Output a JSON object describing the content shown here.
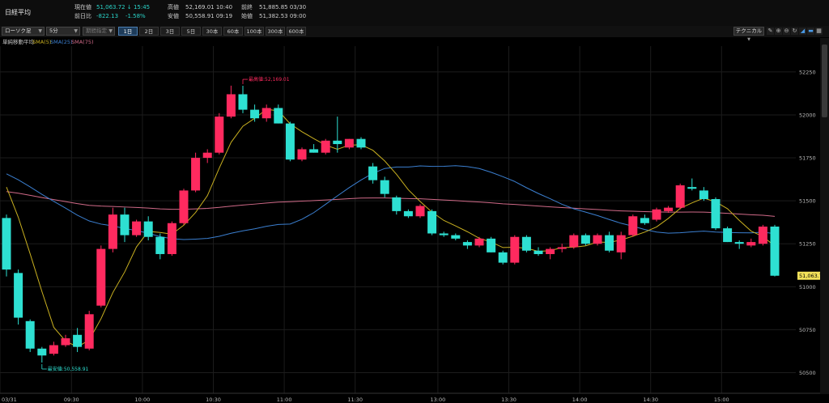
{
  "header": {
    "symbol": "日経平均",
    "quotes": {
      "current_label": "現在値",
      "current_value": "51,063.72 ↓ 15:45",
      "change_label": "前日比",
      "change_value": "-822.13",
      "change_pct": "-1.58%",
      "high_label": "高値",
      "high_value": "52,169.01 10:40",
      "low_label": "安値",
      "low_value": "50,558.91 09:19",
      "prev_label": "前終",
      "prev_value": "51,885.85 03/30",
      "open_label": "始値",
      "open_value": "51,382.53 09:00"
    }
  },
  "toolbar": {
    "chart_type": "ローソク足",
    "interval": "5分",
    "period_placeholder": "期間指定",
    "timeframes": [
      "1日",
      "2日",
      "3日",
      "5日",
      "30本",
      "60本",
      "100本",
      "300本",
      "600本"
    ],
    "active_timeframe": "1日",
    "technical_label": "テクニカル",
    "tool_icons": [
      "pencil-icon",
      "zoom-in-icon",
      "zoom-out-icon",
      "refresh-icon",
      "line-chart-icon",
      "bar-style-icon"
    ]
  },
  "indicators": {
    "main": "単純移動平均",
    "sma5": "SMA(5)",
    "sma25": "SMA(25)",
    "sma75": "SMA(75)",
    "colors": {
      "sma5": "#c9b020",
      "sma25": "#3b7fd0",
      "sma75": "#d06a88",
      "up": "#ff2a5f",
      "down": "#2ee0d2"
    }
  },
  "chart_data": {
    "type": "candlestick",
    "y_ticks": [
      50500,
      50750,
      51000,
      51250,
      51500,
      51750,
      52000,
      52250
    ],
    "y_tick_labels": [
      "50500",
      "50750",
      "51000",
      "51250",
      "51500",
      "51750",
      "52000",
      "52250"
    ],
    "ylim": [
      50380,
      52400
    ],
    "x_tick_labels": [
      "03/31",
      "09:30",
      "10:00",
      "10:30",
      "11:00",
      "11:30",
      "13:00",
      "13:30",
      "14:00",
      "14:30",
      "15:00"
    ],
    "x_tick_index": [
      0,
      6,
      12,
      18,
      24,
      30,
      37,
      43,
      49,
      55,
      61
    ],
    "last_price_label": "51,063.72",
    "high_annotation": "最高値:52,169.01",
    "high_annotation_index": 20,
    "high_value": 52169.01,
    "low_annotation": "最安値:50,558.91",
    "low_annotation_index": 3,
    "low_value": 50558.91,
    "candles": [
      {
        "o": 51400,
        "h": 51420,
        "l": 51060,
        "c": 51100
      },
      {
        "o": 51080,
        "h": 51100,
        "l": 50780,
        "c": 50820
      },
      {
        "o": 50800,
        "h": 50810,
        "l": 50620,
        "c": 50640
      },
      {
        "o": 50640,
        "h": 50650,
        "l": 50559,
        "c": 50600
      },
      {
        "o": 50610,
        "h": 50680,
        "l": 50600,
        "c": 50660
      },
      {
        "o": 50660,
        "h": 50720,
        "l": 50650,
        "c": 50700
      },
      {
        "o": 50720,
        "h": 50760,
        "l": 50620,
        "c": 50650
      },
      {
        "o": 50640,
        "h": 50860,
        "l": 50630,
        "c": 50840
      },
      {
        "o": 50890,
        "h": 51240,
        "l": 50880,
        "c": 51220
      },
      {
        "o": 51220,
        "h": 51460,
        "l": 51200,
        "c": 51420
      },
      {
        "o": 51420,
        "h": 51460,
        "l": 51260,
        "c": 51300
      },
      {
        "o": 51300,
        "h": 51390,
        "l": 51290,
        "c": 51380
      },
      {
        "o": 51380,
        "h": 51410,
        "l": 51270,
        "c": 51290
      },
      {
        "o": 51290,
        "h": 51310,
        "l": 51160,
        "c": 51190
      },
      {
        "o": 51190,
        "h": 51380,
        "l": 51180,
        "c": 51370
      },
      {
        "o": 51370,
        "h": 51570,
        "l": 51360,
        "c": 51560
      },
      {
        "o": 51560,
        "h": 51780,
        "l": 51550,
        "c": 51750
      },
      {
        "o": 51750,
        "h": 51800,
        "l": 51720,
        "c": 51780
      },
      {
        "o": 51780,
        "h": 52010,
        "l": 51770,
        "c": 51990
      },
      {
        "o": 51990,
        "h": 52170,
        "l": 51980,
        "c": 52120
      },
      {
        "o": 52120,
        "h": 52169,
        "l": 52010,
        "c": 52030
      },
      {
        "o": 52030,
        "h": 52060,
        "l": 51960,
        "c": 51980
      },
      {
        "o": 51980,
        "h": 52060,
        "l": 51960,
        "c": 52040
      },
      {
        "o": 52040,
        "h": 52060,
        "l": 51950,
        "c": 51950
      },
      {
        "o": 51950,
        "h": 51960,
        "l": 51730,
        "c": 51740
      },
      {
        "o": 51740,
        "h": 51810,
        "l": 51730,
        "c": 51800
      },
      {
        "o": 51800,
        "h": 51830,
        "l": 51780,
        "c": 51780
      },
      {
        "o": 51780,
        "h": 51860,
        "l": 51770,
        "c": 51850
      },
      {
        "o": 51850,
        "h": 51990,
        "l": 51780,
        "c": 51830
      },
      {
        "o": 51810,
        "h": 51860,
        "l": 51800,
        "c": 51860
      },
      {
        "o": 51860,
        "h": 51870,
        "l": 51800,
        "c": 51810
      },
      {
        "o": 51700,
        "h": 51720,
        "l": 51600,
        "c": 51620
      },
      {
        "o": 51620,
        "h": 51640,
        "l": 51520,
        "c": 51540
      },
      {
        "o": 51520,
        "h": 51530,
        "l": 51420,
        "c": 51440
      },
      {
        "o": 51440,
        "h": 51450,
        "l": 51400,
        "c": 51410
      },
      {
        "o": 51410,
        "h": 51480,
        "l": 51400,
        "c": 51470
      },
      {
        "o": 51440,
        "h": 51450,
        "l": 51300,
        "c": 51310
      },
      {
        "o": 51310,
        "h": 51320,
        "l": 51290,
        "c": 51300
      },
      {
        "o": 51300,
        "h": 51310,
        "l": 51270,
        "c": 51280
      },
      {
        "o": 51260,
        "h": 51270,
        "l": 51220,
        "c": 51240
      },
      {
        "o": 51240,
        "h": 51290,
        "l": 51230,
        "c": 51280
      },
      {
        "o": 51280,
        "h": 51290,
        "l": 51200,
        "c": 51200
      },
      {
        "o": 51200,
        "h": 51210,
        "l": 51130,
        "c": 51140
      },
      {
        "o": 51140,
        "h": 51300,
        "l": 51130,
        "c": 51290
      },
      {
        "o": 51290,
        "h": 51300,
        "l": 51200,
        "c": 51210
      },
      {
        "o": 51210,
        "h": 51230,
        "l": 51180,
        "c": 51190
      },
      {
        "o": 51190,
        "h": 51230,
        "l": 51160,
        "c": 51220
      },
      {
        "o": 51220,
        "h": 51250,
        "l": 51200,
        "c": 51230
      },
      {
        "o": 51230,
        "h": 51310,
        "l": 51220,
        "c": 51300
      },
      {
        "o": 51300,
        "h": 51310,
        "l": 51240,
        "c": 51250
      },
      {
        "o": 51250,
        "h": 51310,
        "l": 51240,
        "c": 51300
      },
      {
        "o": 51300,
        "h": 51320,
        "l": 51200,
        "c": 51210
      },
      {
        "o": 51200,
        "h": 51320,
        "l": 51160,
        "c": 51300
      },
      {
        "o": 51300,
        "h": 51420,
        "l": 51290,
        "c": 51410
      },
      {
        "o": 51400,
        "h": 51420,
        "l": 51360,
        "c": 51370
      },
      {
        "o": 51390,
        "h": 51460,
        "l": 51380,
        "c": 51450
      },
      {
        "o": 51440,
        "h": 51470,
        "l": 51430,
        "c": 51460
      },
      {
        "o": 51460,
        "h": 51600,
        "l": 51450,
        "c": 51590
      },
      {
        "o": 51580,
        "h": 51630,
        "l": 51560,
        "c": 51570
      },
      {
        "o": 51560,
        "h": 51580,
        "l": 51500,
        "c": 51510
      },
      {
        "o": 51510,
        "h": 51520,
        "l": 51330,
        "c": 51340
      },
      {
        "o": 51340,
        "h": 51350,
        "l": 51260,
        "c": 51260
      },
      {
        "o": 51260,
        "h": 51270,
        "l": 51220,
        "c": 51250
      },
      {
        "o": 51240,
        "h": 51280,
        "l": 51230,
        "c": 51260
      },
      {
        "o": 51250,
        "h": 51360,
        "l": 51240,
        "c": 51350
      },
      {
        "o": 51350,
        "h": 51360,
        "l": 51060,
        "c": 51064
      }
    ]
  }
}
